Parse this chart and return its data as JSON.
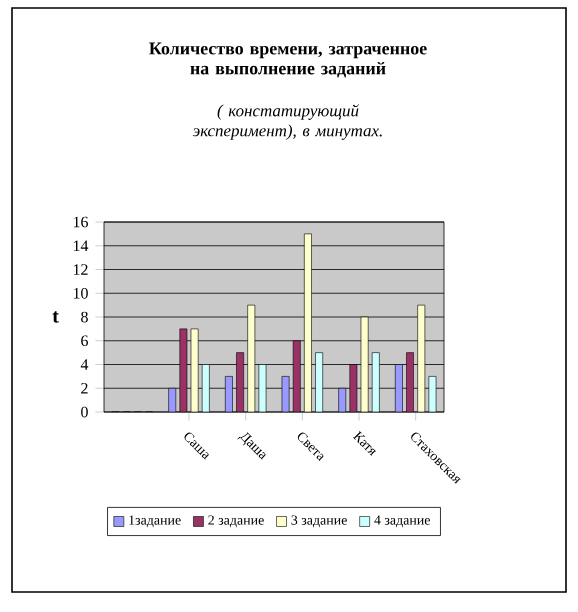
{
  "chart_data": {
    "type": "bar",
    "title": "Количество времени, затраченное на выполнение заданий",
    "subtitle": "( констатирующий эксперимент), в минутах.",
    "ylabel": "t",
    "categories": [
      null,
      "Саша",
      "Даша",
      "Света",
      "Катя",
      "Стаховская"
    ],
    "series": [
      {
        "name": "1задание",
        "color": "#9999ff",
        "values": [
          0,
          2,
          3,
          3,
          2,
          4
        ]
      },
      {
        "name": "2 задание",
        "color": "#993366",
        "values": [
          0,
          7,
          5,
          6,
          4,
          5
        ]
      },
      {
        "name": "3 задание",
        "color": "#ffffcc",
        "values": [
          0,
          7,
          9,
          15,
          8,
          9
        ]
      },
      {
        "name": "4 задание",
        "color": "#ccffff",
        "values": [
          0,
          4,
          4,
          5,
          5,
          3
        ]
      }
    ],
    "ylim": [
      0,
      16
    ],
    "yticks": [
      0,
      2,
      4,
      6,
      8,
      10,
      12,
      14,
      16
    ],
    "grid": "y",
    "legend": "bottom"
  }
}
